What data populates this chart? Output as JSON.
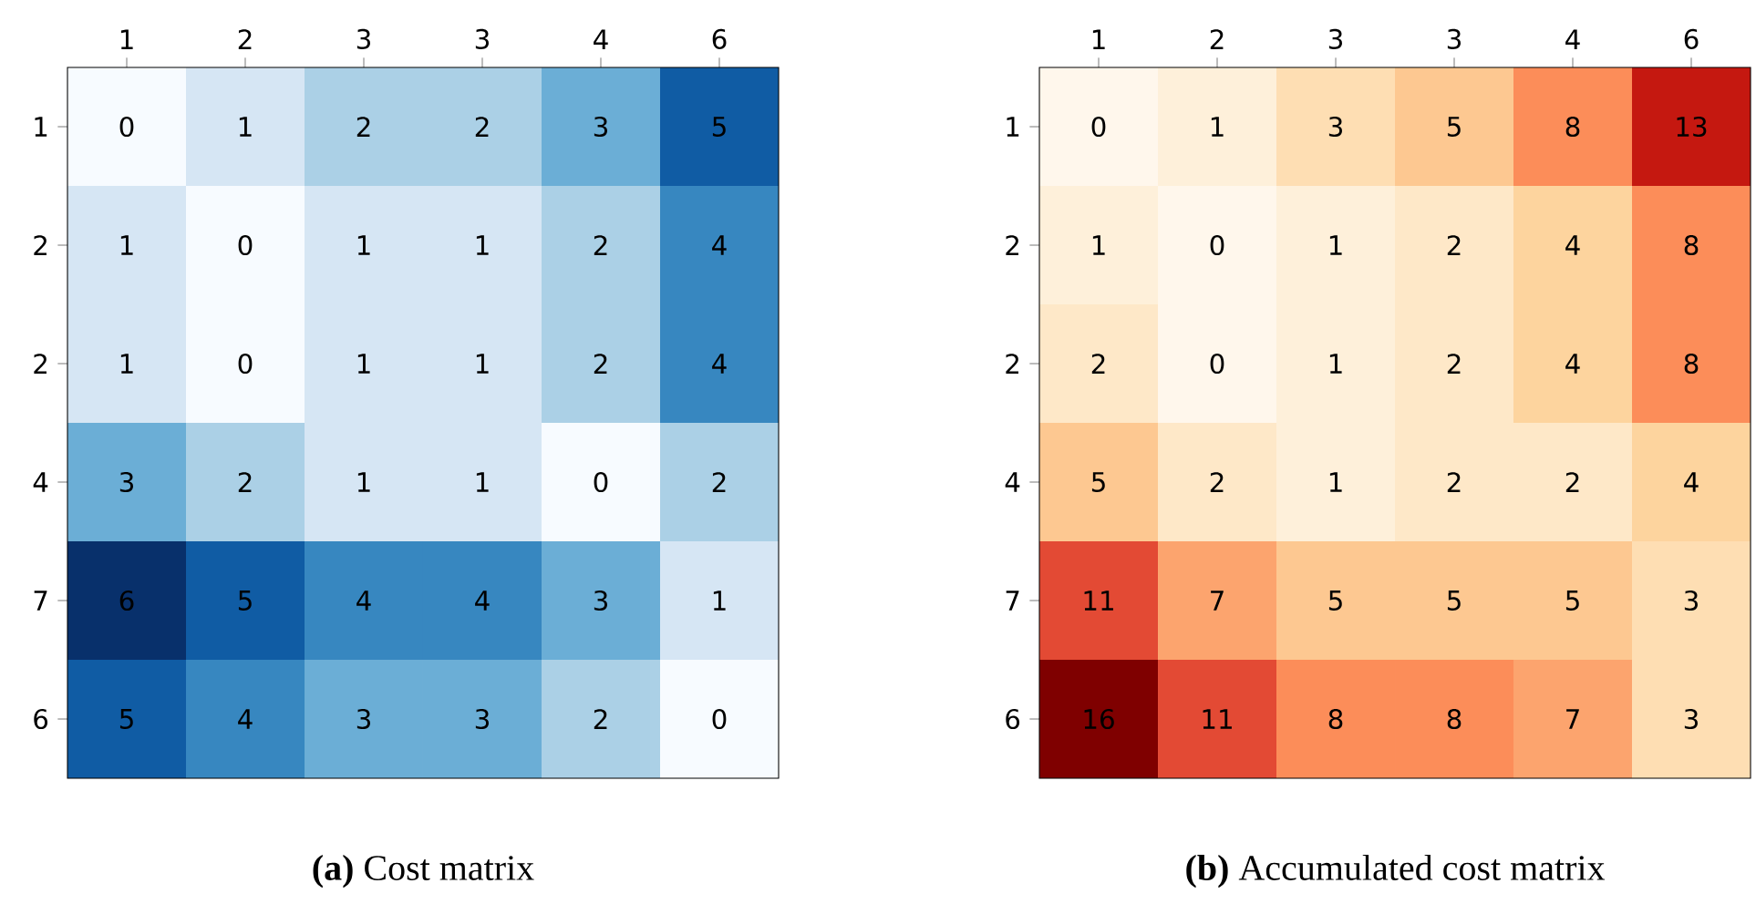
{
  "chart_data": [
    {
      "type": "heatmap",
      "title": "**(a)** Cost matrix",
      "categories": [
        "1",
        "2",
        "3",
        "3",
        "4",
        "6"
      ],
      "y_categories": [
        "1",
        "2",
        "2",
        "4",
        "7",
        "6"
      ],
      "cells": [
        [
          0,
          1,
          2,
          2,
          3,
          5
        ],
        [
          1,
          0,
          1,
          1,
          2,
          4
        ],
        [
          1,
          0,
          1,
          1,
          2,
          4
        ],
        [
          3,
          2,
          1,
          1,
          0,
          2
        ],
        [
          6,
          5,
          4,
          4,
          3,
          1
        ],
        [
          5,
          4,
          3,
          3,
          2,
          0
        ]
      ],
      "data_labels": true
    },
    {
      "type": "heatmap",
      "title": "**(b)** Accumulated cost matrix",
      "categories": [
        "1",
        "2",
        "3",
        "3",
        "4",
        "6"
      ],
      "y_categories": [
        "1",
        "2",
        "2",
        "4",
        "7",
        "6"
      ],
      "cells": [
        [
          0,
          1,
          3,
          5,
          8,
          13
        ],
        [
          1,
          0,
          1,
          2,
          4,
          8
        ],
        [
          2,
          0,
          1,
          2,
          4,
          8
        ],
        [
          5,
          2,
          1,
          2,
          2,
          4
        ],
        [
          11,
          7,
          5,
          5,
          5,
          3
        ],
        [
          16,
          11,
          8,
          8,
          7,
          3
        ]
      ],
      "data_labels": true
    }
  ]
}
